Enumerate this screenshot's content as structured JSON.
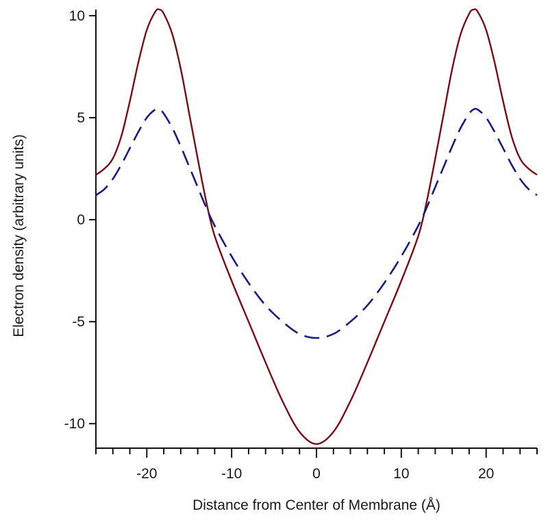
{
  "chart_data": {
    "type": "line",
    "title": "",
    "xlabel": "Distance from Center of Membrane (Å)",
    "ylabel": "Electron density (arbitrary units)",
    "xlim": [
      -26,
      26
    ],
    "ylim": [
      -11.2,
      10.3
    ],
    "x_ticks": [
      -20,
      -10,
      0,
      10,
      20
    ],
    "y_ticks": [
      -10,
      -5,
      0,
      5,
      10
    ],
    "x_minor_step": 2,
    "grid": false,
    "legend": "none",
    "series": [
      {
        "color": "#7a0a14",
        "style": "solid",
        "x": [
          0,
          2,
          4,
          6,
          8,
          10,
          12,
          13,
          14,
          15,
          16,
          17,
          18,
          18.5,
          19,
          20,
          21,
          22,
          23,
          24,
          25,
          26
        ],
        "y": [
          -11.0,
          -10.4,
          -8.9,
          -7.0,
          -5.0,
          -3.0,
          -0.8,
          0.9,
          3.0,
          5.2,
          7.4,
          9.1,
          10.1,
          10.3,
          10.2,
          9.3,
          7.7,
          5.8,
          4.1,
          3.0,
          2.5,
          2.2
        ]
      },
      {
        "color": "#1a1a80",
        "style": "dashed",
        "x": [
          0,
          2,
          4,
          6,
          8,
          10,
          12,
          13,
          14,
          15,
          16,
          17,
          18,
          18.5,
          19,
          20,
          21,
          22,
          23,
          24,
          25,
          26
        ],
        "y": [
          -5.8,
          -5.6,
          -5.0,
          -4.2,
          -3.1,
          -1.8,
          -0.3,
          0.6,
          1.6,
          2.6,
          3.6,
          4.5,
          5.2,
          5.4,
          5.4,
          5.0,
          4.3,
          3.5,
          2.7,
          2.0,
          1.5,
          1.2
        ]
      }
    ]
  }
}
